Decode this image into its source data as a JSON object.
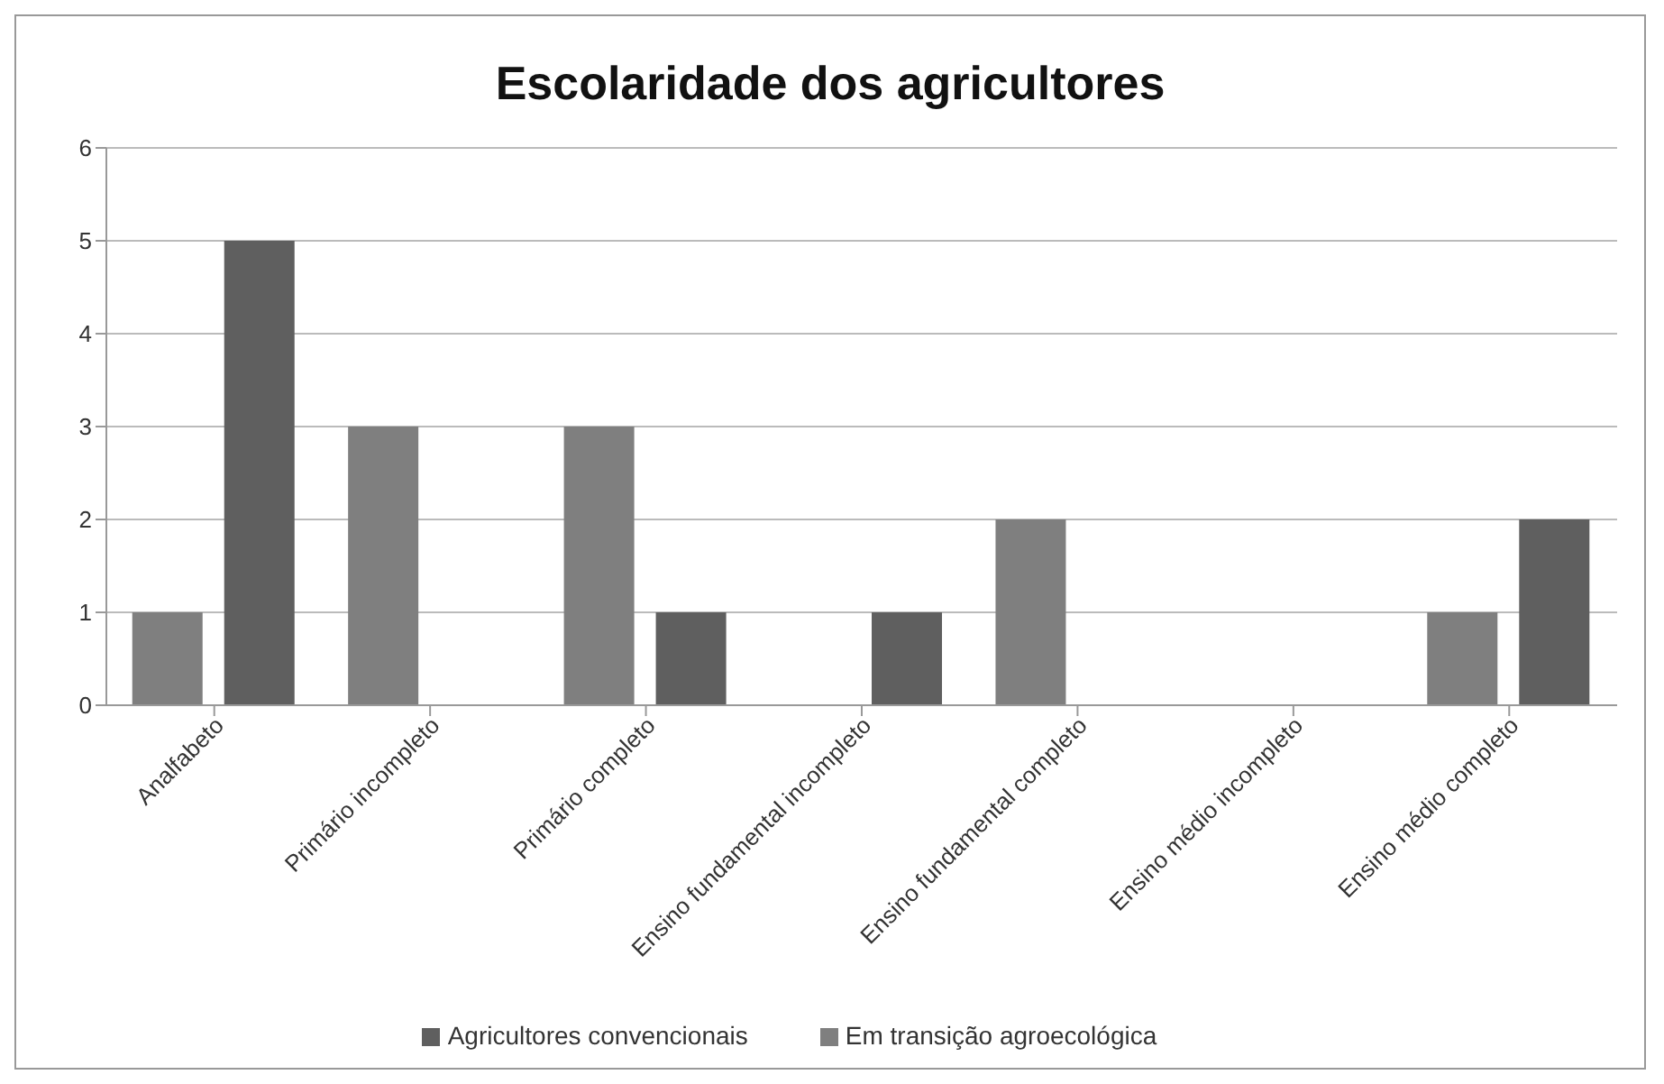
{
  "chart_data": {
    "type": "bar",
    "title": "Escolaridade dos agricultores",
    "categories": [
      "Analfabeto",
      "Primário incompleto",
      "Primário completo",
      "Ensino fundamental incompleto",
      "Ensino fundamental completo",
      "Ensino médio incompleto",
      "Ensino médio completo"
    ],
    "series": [
      {
        "name": "Em transição agroecológica",
        "color": "#7f7f7f",
        "values": [
          1,
          3,
          3,
          0,
          2,
          0,
          1
        ]
      },
      {
        "name": "Agricultores convencionais",
        "color": "#5f5f5f",
        "values": [
          5,
          0,
          1,
          1,
          0,
          0,
          2
        ]
      }
    ],
    "ylim": [
      0,
      6
    ],
    "yticks": [
      0,
      1,
      2,
      3,
      4,
      5,
      6
    ],
    "grid": "y",
    "legend": "bottom"
  }
}
